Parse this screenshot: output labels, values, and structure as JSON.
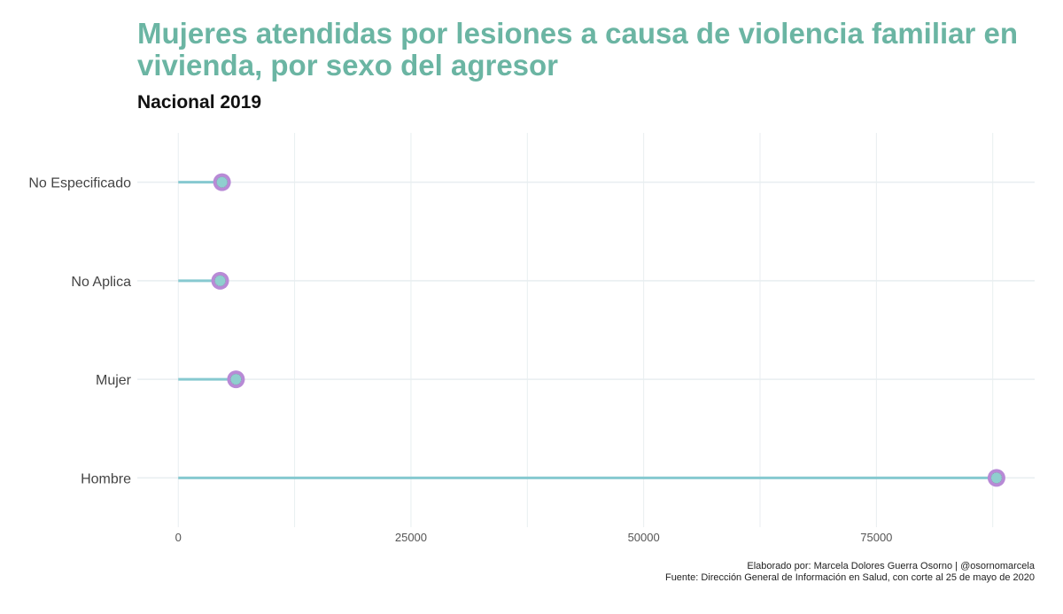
{
  "chart_data": {
    "type": "lollipop",
    "title": "Mujeres atendidas por lesiones a causa de violencia familiar en vivienda, por sexo del agresor",
    "subtitle": "Nacional 2019",
    "caption": [
      "Elaborado por: Marcela Dolores Guerra Osorno | @osornomarcela",
      "Fuente: Dirección General de Información en Salud, con corte al 25 de mayo de 2020"
    ],
    "categories": [
      "No Especificado",
      "No Aplica",
      "Mujer",
      "Hombre"
    ],
    "values": [
      4700,
      4500,
      6200,
      87900
    ],
    "xlim": [
      -4400,
      92000
    ],
    "xticks": [
      0,
      25000,
      50000,
      75000
    ],
    "xtick_labels": [
      "0",
      "25000",
      "50000",
      "75000"
    ],
    "grid": true,
    "colors": {
      "title": "#6bb5a3",
      "segment": "#86c9d0",
      "point_outer": "#b88ad6",
      "point_inner": "#8fcfcf",
      "grid": "#e8eef0"
    }
  }
}
